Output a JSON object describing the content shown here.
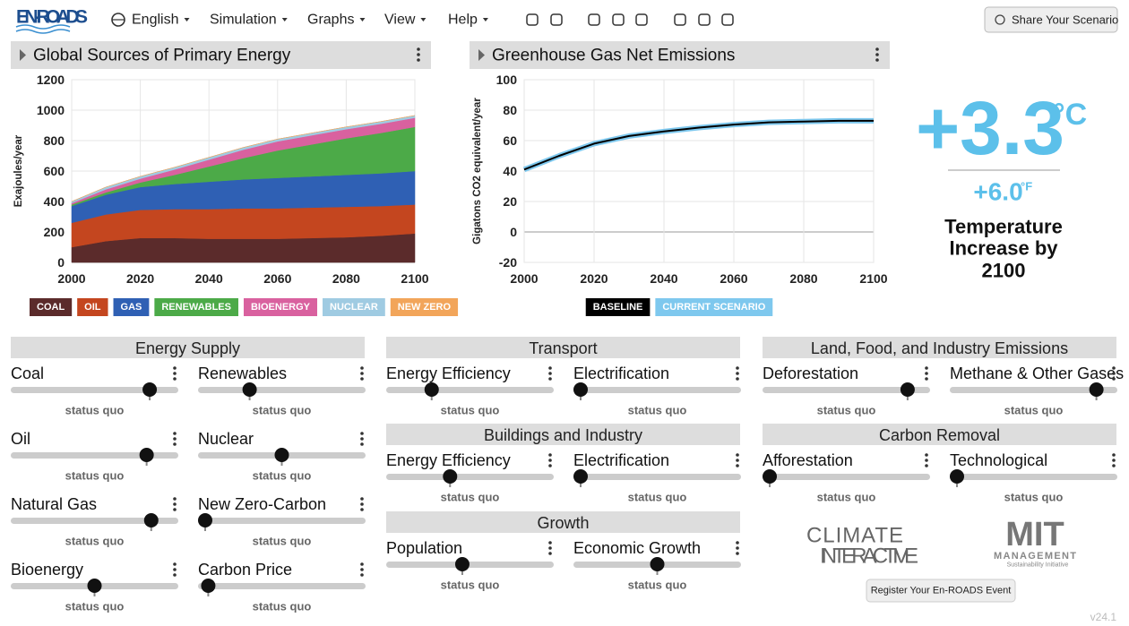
{
  "header": {
    "logo": "EN-ROADS",
    "menu": [
      "English",
      "Simulation",
      "Graphs",
      "View",
      "Help"
    ],
    "share": "Share Your Scenario"
  },
  "chart_data": [
    {
      "type": "area",
      "stacked": true,
      "title": "Global Sources of Primary Energy",
      "y_label": "Exajoules/year",
      "x": [
        2000,
        2010,
        2020,
        2030,
        2040,
        2050,
        2060,
        2070,
        2080,
        2090,
        2100
      ],
      "xlim": [
        2000,
        2100
      ],
      "xticks": [
        2000,
        2020,
        2040,
        2060,
        2080,
        2100
      ],
      "ylim": [
        0,
        1200
      ],
      "yticks": [
        0,
        200,
        400,
        600,
        800,
        1000,
        1200
      ],
      "grid": true,
      "series": [
        {
          "name": "COAL",
          "color": "#5b2b2b",
          "values": [
            100,
            140,
            160,
            160,
            155,
            155,
            155,
            160,
            165,
            175,
            190
          ]
        },
        {
          "name": "OIL",
          "color": "#c4461f",
          "values": [
            160,
            175,
            185,
            190,
            195,
            200,
            200,
            200,
            200,
            195,
            190
          ]
        },
        {
          "name": "GAS",
          "color": "#2f60b4",
          "values": [
            110,
            130,
            150,
            165,
            180,
            190,
            200,
            205,
            210,
            215,
            220
          ]
        },
        {
          "name": "RENEWABLES",
          "color": "#4caa48",
          "values": [
            10,
            15,
            30,
            60,
            100,
            140,
            180,
            210,
            240,
            265,
            290
          ]
        },
        {
          "name": "BIOENERGY",
          "color": "#d9619f",
          "values": [
            10,
            20,
            25,
            35,
            45,
            55,
            60,
            60,
            60,
            60,
            60
          ]
        },
        {
          "name": "NUCLEAR",
          "color": "#9fcbe2",
          "values": [
            10,
            15,
            15,
            15,
            15,
            15,
            15,
            15,
            15,
            15,
            15
          ]
        },
        {
          "name": "NEW ZERO",
          "color": "#f2a55a",
          "values": [
            0,
            0,
            0,
            0,
            0,
            0,
            0,
            0,
            0,
            0,
            0
          ]
        }
      ]
    },
    {
      "type": "line",
      "title": "Greenhouse Gas Net Emissions",
      "y_label": "Gigatons CO2 equivalent/year",
      "x": [
        2000,
        2010,
        2020,
        2030,
        2040,
        2050,
        2060,
        2070,
        2080,
        2090,
        2100
      ],
      "xlim": [
        2000,
        2100
      ],
      "xticks": [
        2000,
        2020,
        2040,
        2060,
        2080,
        2100
      ],
      "ylim": [
        -20,
        100
      ],
      "yticks": [
        -20,
        0,
        20,
        40,
        60,
        80,
        100
      ],
      "grid": true,
      "series": [
        {
          "name": "BASELINE",
          "color": "#000000",
          "values": [
            41,
            50,
            58,
            63,
            66,
            68.5,
            70.5,
            72,
            72.5,
            73,
            73
          ]
        },
        {
          "name": "CURRENT SCENARIO",
          "color": "#7ec8ee",
          "values": [
            41,
            50,
            58,
            63,
            66,
            68.5,
            70.5,
            72,
            72.5,
            73,
            73
          ]
        }
      ]
    }
  ],
  "temperature": {
    "celsius": "+3.3",
    "celsius_unit": "°C",
    "fahrenheit": "+6.0",
    "fahrenheit_unit": "°F",
    "label": [
      "Temperature",
      "Increase by",
      "2100"
    ]
  },
  "panels": [
    {
      "title": "Energy Supply",
      "sliders": [
        {
          "label": "Coal",
          "status": "status quo"
        },
        {
          "label": "Renewables",
          "status": "status quo"
        },
        {
          "label": "Oil",
          "status": "status quo"
        },
        {
          "label": "Nuclear",
          "status": "status quo"
        },
        {
          "label": "Natural Gas",
          "status": "status quo"
        },
        {
          "label": "New Zero-Carbon",
          "status": "status quo"
        },
        {
          "label": "Bioenergy",
          "status": "status quo"
        },
        {
          "label": "Carbon Price",
          "status": "status quo"
        }
      ]
    },
    {
      "title": "Transport",
      "sliders": [
        {
          "label": "Energy Efficiency",
          "status": "status quo"
        },
        {
          "label": "Electrification",
          "status": "status quo"
        }
      ]
    },
    {
      "title": "Buildings and Industry",
      "sliders": [
        {
          "label": "Energy Efficiency",
          "status": "status quo"
        },
        {
          "label": "Electrification",
          "status": "status quo"
        }
      ]
    },
    {
      "title": "Growth",
      "sliders": [
        {
          "label": "Population",
          "status": "status quo"
        },
        {
          "label": "Economic Growth",
          "status": "status quo"
        }
      ]
    },
    {
      "title": "Land, Food, and Industry Emissions",
      "sliders": [
        {
          "label": "Deforestation",
          "status": "status quo"
        },
        {
          "label": "Methane & Other Gases",
          "status": "status quo"
        }
      ]
    },
    {
      "title": "Carbon Removal",
      "sliders": [
        {
          "label": "Afforestation",
          "status": "status quo"
        },
        {
          "label": "Technological",
          "status": "status quo"
        }
      ]
    }
  ],
  "logos": {
    "climate_interactive": [
      "CLIMATE",
      "INTERACTIVE"
    ],
    "mit": [
      "MIT",
      "MANAGEMENT",
      "Sustainability Initiative"
    ]
  },
  "footer": {
    "register": "Register Your En-ROADS Event",
    "version": "v24.1"
  }
}
